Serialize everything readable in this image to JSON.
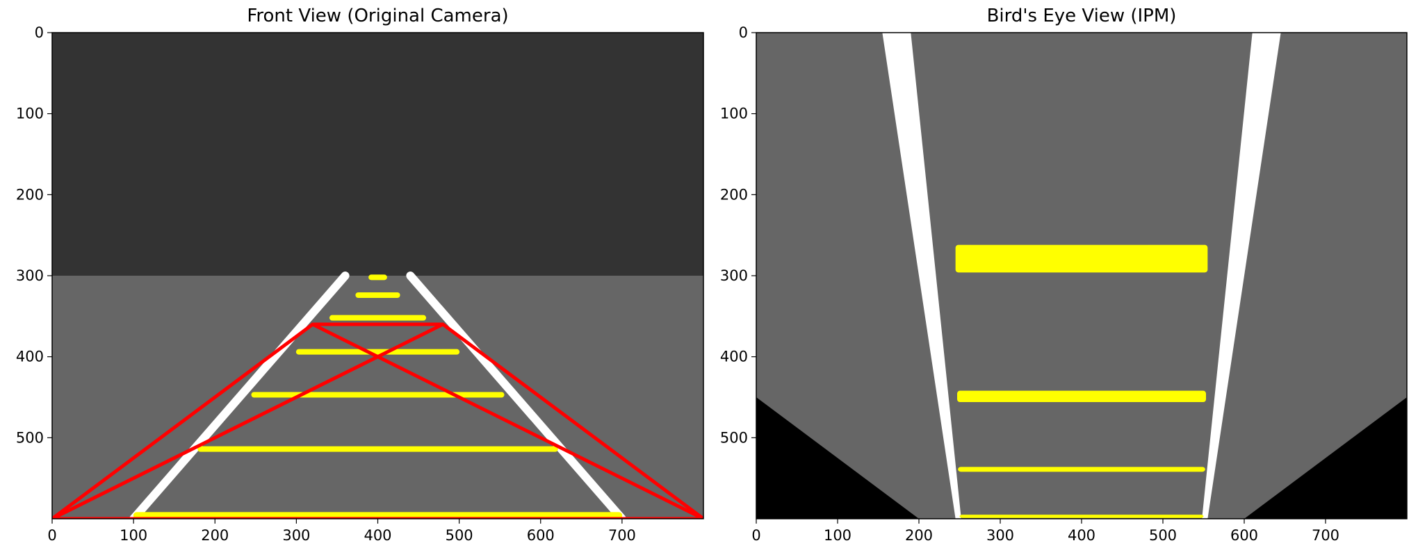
{
  "chart_data": [
    {
      "type": "image",
      "title": "Front View (Original Camera)",
      "xlim": [
        0,
        800
      ],
      "ylim": [
        600,
        0
      ],
      "x_ticks": [
        0,
        100,
        200,
        300,
        400,
        500,
        600,
        700
      ],
      "y_ticks": [
        0,
        100,
        200,
        300,
        400,
        500
      ],
      "grid": false,
      "colors": {
        "sky": "#333333",
        "road": "#666666",
        "lane": "#ffffff",
        "marking": "#ffff00",
        "roi": "#ff0000"
      },
      "regions": [
        {
          "name": "sky",
          "y_range": [
            0,
            300
          ]
        },
        {
          "name": "road",
          "y_range": [
            300,
            600
          ]
        }
      ],
      "lane_lines": [
        {
          "from": [
            100,
            600
          ],
          "to": [
            360,
            300
          ]
        },
        {
          "from": [
            700,
            600
          ],
          "to": [
            440,
            300
          ]
        }
      ],
      "markings": [
        {
          "y": 302,
          "x": [
            392,
            408
          ]
        },
        {
          "y": 324,
          "x": [
            376,
            424
          ]
        },
        {
          "y": 352,
          "x": [
            344,
            456
          ]
        },
        {
          "y": 394,
          "x": [
            303,
            497
          ]
        },
        {
          "y": 447,
          "x": [
            248,
            552
          ]
        },
        {
          "y": 514,
          "x": [
            182,
            618
          ]
        },
        {
          "y": 596,
          "x": [
            104,
            696
          ]
        }
      ],
      "roi_quad": [
        [
          320,
          360
        ],
        [
          480,
          360
        ],
        [
          800,
          600
        ],
        [
          0,
          600
        ]
      ]
    },
    {
      "type": "image",
      "title": "Bird's Eye View (IPM)",
      "xlim": [
        0,
        800
      ],
      "ylim": [
        600,
        0
      ],
      "x_ticks": [
        0,
        100,
        200,
        300,
        400,
        500,
        600,
        700
      ],
      "y_ticks": [
        0,
        100,
        200,
        300,
        400,
        500
      ],
      "grid": false,
      "colors": {
        "road": "#666666",
        "outside": "#000000",
        "lane": "#ffffff",
        "marking": "#ffff00"
      },
      "lane_lines": [
        {
          "top_x": [
            155,
            190
          ],
          "bottom_x": [
            245,
            252
          ]
        },
        {
          "top_x": [
            610,
            645
          ],
          "bottom_x": [
            548,
            555
          ]
        }
      ],
      "markings": [
        {
          "y_range": [
            262,
            296
          ],
          "x": [
            245,
            555
          ]
        },
        {
          "y_range": [
            442,
            456
          ],
          "x": [
            247,
            553
          ]
        },
        {
          "y_range": [
            536,
            542
          ],
          "x": [
            248,
            552
          ]
        },
        {
          "y_range": [
            595,
            599
          ],
          "x": [
            250,
            550
          ]
        }
      ],
      "black_corners": [
        [
          [
            0,
            450
          ],
          [
            200,
            600
          ],
          [
            0,
            600
          ]
        ],
        [
          [
            800,
            450
          ],
          [
            800,
            600
          ],
          [
            600,
            600
          ]
        ]
      ]
    }
  ]
}
